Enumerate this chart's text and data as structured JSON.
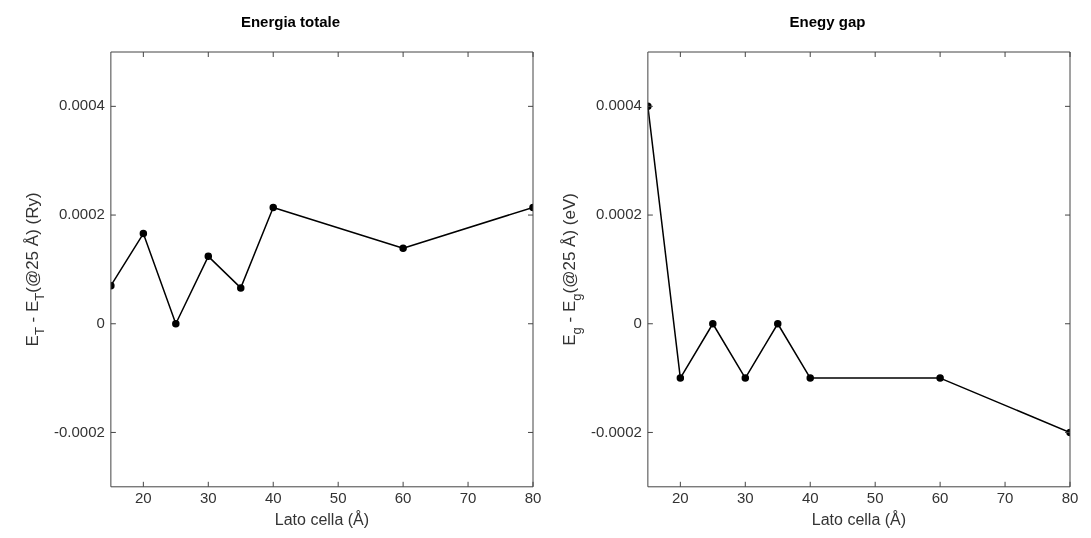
{
  "chart_data": [
    {
      "type": "line",
      "title": "Energia totale",
      "xlabel": "Lato cella (Å)",
      "ylabel": "E$_{T}$ - E$_{T}$(@25 Å) (Ry)",
      "x": [
        15,
        20,
        25,
        30,
        35,
        40,
        60,
        80
      ],
      "series": [
        {
          "color": "#000000",
          "values": [
            7e-05,
            0.000166,
            0,
            0.000124,
            6.6e-05,
            0.000214,
            0.000139,
            0.000214
          ]
        }
      ],
      "xlim": [
        15,
        80
      ],
      "xticks": [
        20,
        30,
        40,
        50,
        60,
        70,
        80
      ],
      "ylim": [
        -0.0003,
        0.0005
      ],
      "yticks": [
        -0.0002,
        0,
        0.0002,
        0.0004
      ],
      "grid": false,
      "legend": false,
      "marker": "circle",
      "line_style": "solid"
    },
    {
      "type": "line",
      "title": "Enegy gap",
      "xlabel": "Lato cella (Å)",
      "ylabel": "E$_{g}$ - E$_{g}$(@25 Å) (eV)",
      "x": [
        15,
        20,
        25,
        30,
        35,
        40,
        60,
        80
      ],
      "series": [
        {
          "color": "#000000",
          "values": [
            0.0004,
            -0.0001,
            0,
            -0.0001,
            0,
            -0.0001,
            -0.0001,
            -0.0002
          ]
        }
      ],
      "xlim": [
        15,
        80
      ],
      "xticks": [
        20,
        30,
        40,
        50,
        60,
        70,
        80
      ],
      "ylim": [
        -0.0003,
        0.0005
      ],
      "yticks": [
        -0.0002,
        0,
        0.0002,
        0.0004
      ],
      "grid": false,
      "legend": false,
      "marker": "circle",
      "line_style": "solid"
    }
  ]
}
